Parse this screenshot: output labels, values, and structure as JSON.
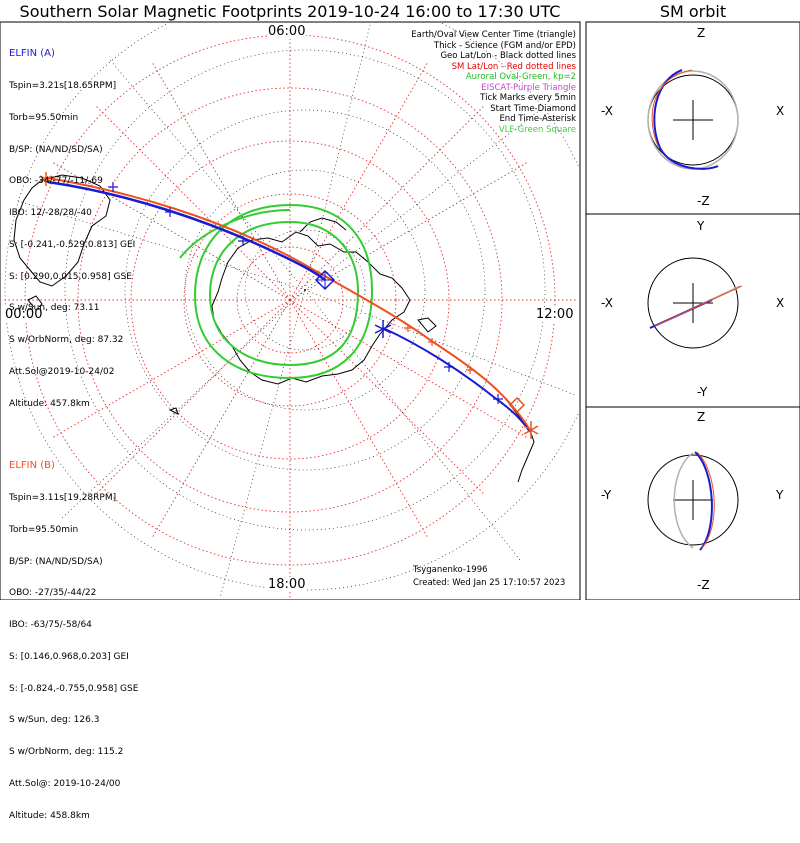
{
  "title": "Southern Solar Magnetic Footprints 2019-10-24 16:00 to 17:30 UTC",
  "sm_title": "SM orbit",
  "clock_labels": {
    "top": "06:00",
    "bottom": "18:00",
    "left": "00:00",
    "right": "12:00"
  },
  "elfin_a": {
    "header": "ELFIN (A)",
    "lines": [
      "Tspin=3.21s[18.65RPM]",
      "Torb=95.50min",
      "B/SP: (NA/ND/SD/SA)",
      "OBO: -34/-77/-11/-69",
      "IBO: 12/-28/28/-40",
      "S: [-0.241,-0.529,0.813] GEI",
      "S: [0.290,0.015,0.958] GSE",
      "S w/Sun, deg: 73.11",
      "S w/OrbNorm, deg: 87.32",
      "Att.Sol@2019-10-24/02",
      "Altitude: 457.8km"
    ],
    "color": "#1a1ad0"
  },
  "elfin_b": {
    "header": "ELFIN (B)",
    "lines": [
      "Tspin=3.11s[19.28RPM]",
      "Torb=95.50min",
      "B/SP: (NA/ND/SD/SA)",
      "OBO: -27/35/-44/22",
      "IBO: -63/75/-58/64",
      "S: [0.146,0.968,0.203] GEI",
      "S: [-0.824,-0.755,0.958] GSE",
      "S w/Sun, deg: 126.3",
      "S w/OrbNorm, deg: 115.2",
      "Att.Sol@: 2019-10-24/00",
      "Altitude: 458.8km"
    ],
    "color": "#f05020"
  },
  "legend": [
    {
      "text": "Earth/Oval View Center Time (triangle)",
      "color": "#000000"
    },
    {
      "text": "Thick - Science (FGM and/or EPD)",
      "color": "#000000"
    },
    {
      "text": "Geo Lat/Lon - Black dotted lines",
      "color": "#000000"
    },
    {
      "text": "SM Lat/Lon - Red dotted lines",
      "color": "#e00000"
    },
    {
      "text": "Auroral Oval-Green, kp=2",
      "color": "#22bb22"
    },
    {
      "text": "EISCAT-Purple Triangle",
      "color": "#cc44cc"
    },
    {
      "text": "Tick Marks every 5min",
      "color": "#000000"
    },
    {
      "text": "Start Time-Diamond",
      "color": "#000000"
    },
    {
      "text": "End Time-Asterisk",
      "color": "#000000"
    },
    {
      "text": "VLF-Green Square",
      "color": "#44cc44"
    }
  ],
  "model": "Tsyganenko-1996",
  "created": "Created: Wed Jan 25 17:10:57 2023",
  "sm_panels": [
    {
      "top": "Z",
      "bottom": "-Z",
      "left": "-X",
      "right": "X"
    },
    {
      "top": "Y",
      "bottom": "-Y",
      "left": "-X",
      "right": "X"
    },
    {
      "top": "Z",
      "bottom": "-Z",
      "left": "-Y",
      "right": "Y"
    }
  ],
  "colors": {
    "sm_grid": "#e03030",
    "geo_grid": "#000000",
    "oval": "#33cc33",
    "track_a": "#1a1ad0",
    "track_b": "#f05020",
    "orbit_ref": "#b0b0b0"
  }
}
